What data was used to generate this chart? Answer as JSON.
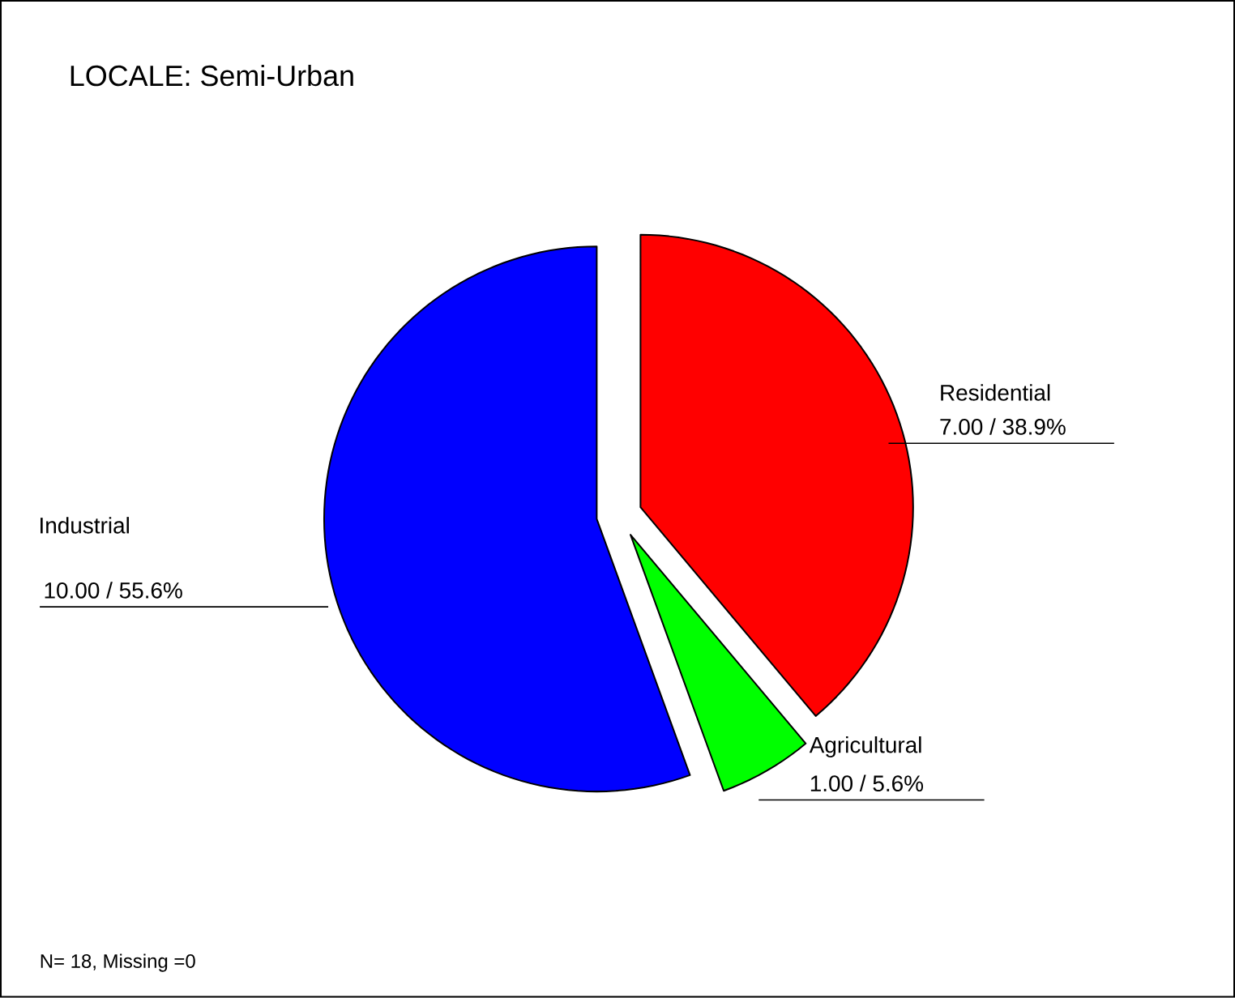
{
  "chart_data": {
    "type": "pie",
    "title": "LOCALE:   Semi-Urban",
    "categories": [
      "Residential",
      "Agricultural",
      "Industrial"
    ],
    "values": [
      7,
      1,
      10
    ],
    "colors": [
      "#ff0000",
      "#00ff00",
      "#0000ff"
    ],
    "value_labels": [
      "7.00 / 38.9%",
      "1.00 / 5.6%",
      "10.00 / 55.6%"
    ],
    "annotations": [
      "N= 18, Missing =0"
    ]
  }
}
